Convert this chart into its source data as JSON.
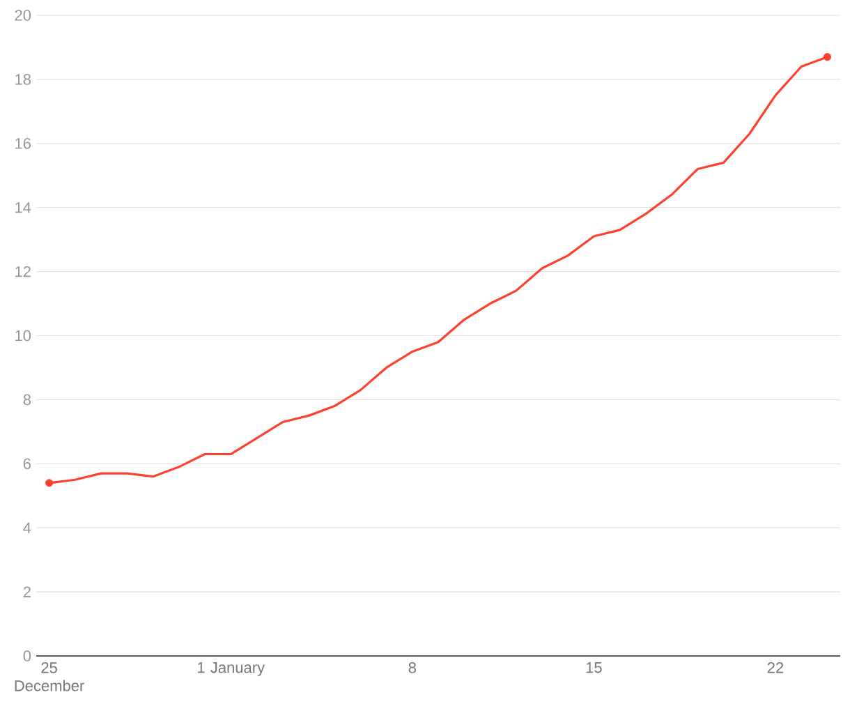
{
  "chart_data": {
    "type": "line",
    "categories": [
      "25 December",
      null,
      null,
      null,
      null,
      null,
      null,
      "1 January",
      null,
      null,
      null,
      null,
      null,
      null,
      "8",
      null,
      null,
      null,
      null,
      null,
      null,
      "15",
      null,
      null,
      null,
      null,
      null,
      null,
      "22",
      null,
      null
    ],
    "series": [
      {
        "color": "#fb4230",
        "values": [
          5.4,
          5.5,
          5.7,
          5.7,
          5.6,
          5.9,
          6.3,
          6.3,
          6.8,
          7.3,
          7.5,
          7.8,
          8.3,
          9.0,
          9.5,
          9.8,
          10.5,
          11.0,
          11.4,
          12.1,
          12.5,
          13.1,
          13.3,
          13.8,
          14.4,
          15.2,
          15.4,
          16.3,
          17.5,
          18.4,
          18.7
        ]
      },
      {
        "type": "scatter",
        "color": "#fb4230",
        "marker": "circle",
        "values": [
          5.4,
          null,
          null,
          null,
          null,
          null,
          null,
          null,
          null,
          null,
          null,
          null,
          null,
          null,
          null,
          null,
          null,
          null,
          null,
          null,
          null,
          null,
          null,
          null,
          null,
          null,
          null,
          null,
          null,
          null,
          18.7
        ]
      }
    ],
    "ylim": [
      0,
      20
    ],
    "yticks": [
      0,
      2,
      4,
      6,
      8,
      10,
      12,
      14,
      16,
      18,
      20
    ],
    "grid": "y"
  }
}
